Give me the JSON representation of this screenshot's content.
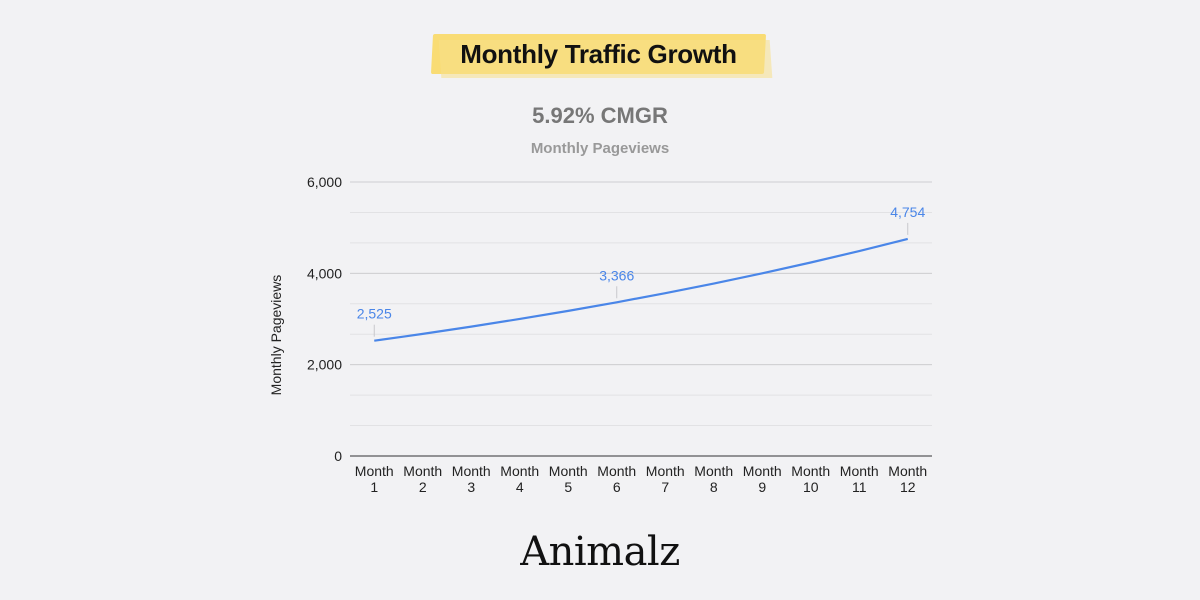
{
  "header": {
    "title": "Monthly Traffic Growth"
  },
  "chart_data": {
    "type": "line",
    "headline": "5.92% CMGR",
    "title": "Monthly Pageviews",
    "ylabel": "Monthly Pageviews",
    "xlabel": "",
    "ylim": [
      0,
      6000
    ],
    "yticks": [
      "0",
      "2,000",
      "4,000",
      "6,000"
    ],
    "ytick_values": [
      0,
      2000,
      4000,
      6000
    ],
    "minor_grid_step": 666.67,
    "categories": [
      [
        "Month",
        "1"
      ],
      [
        "Month",
        "2"
      ],
      [
        "Month",
        "3"
      ],
      [
        "Month",
        "4"
      ],
      [
        "Month",
        "5"
      ],
      [
        "Month",
        "6"
      ],
      [
        "Month",
        "7"
      ],
      [
        "Month",
        "8"
      ],
      [
        "Month",
        "9"
      ],
      [
        "Month",
        "10"
      ],
      [
        "Month",
        "11"
      ],
      [
        "Month",
        "12"
      ]
    ],
    "series": [
      {
        "values": [
          2525,
          2674,
          2833,
          3001,
          3178,
          3366,
          3565,
          3777,
          4000,
          4237,
          4488,
          4754
        ],
        "color": "#4a86e8"
      }
    ],
    "data_labels": [
      {
        "index": 0,
        "text": "2,525"
      },
      {
        "index": 5,
        "text": "3,366"
      },
      {
        "index": 11,
        "text": "4,754"
      }
    ],
    "grid": true,
    "legend": "none"
  },
  "brand": {
    "name": "Animalz"
  }
}
